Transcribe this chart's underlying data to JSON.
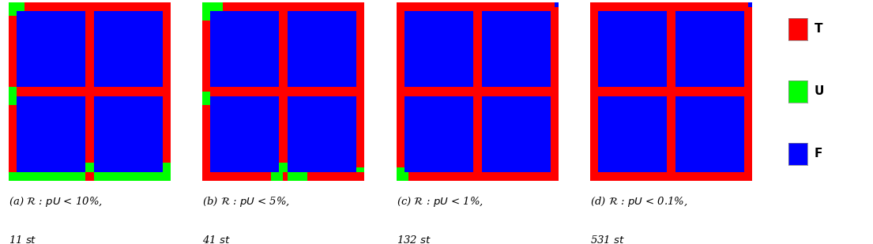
{
  "color_T": "#FF0000",
  "color_U": "#00FF00",
  "color_F": "#0000FF",
  "legend_labels": [
    "T",
    "U",
    "F"
  ],
  "legend_colors": [
    "#FF0000",
    "#00FF00",
    "#0000FF"
  ],
  "labels_main": [
    "(a) $\\mathcal{R}$ : $pU$ < 10%,",
    "(b) $\\mathcal{R}$ : $pU$ < 5%,",
    "(c) $\\mathcal{R}$ : $pU$ < 1%,",
    "(d) $\\mathcal{R}$ : $pU$ < 0.1%,"
  ],
  "labels_sub": [
    "11 $st$",
    "41 $st$",
    "132 $st$",
    "531 $st$"
  ],
  "n": 40,
  "border": 2,
  "cross": 2
}
